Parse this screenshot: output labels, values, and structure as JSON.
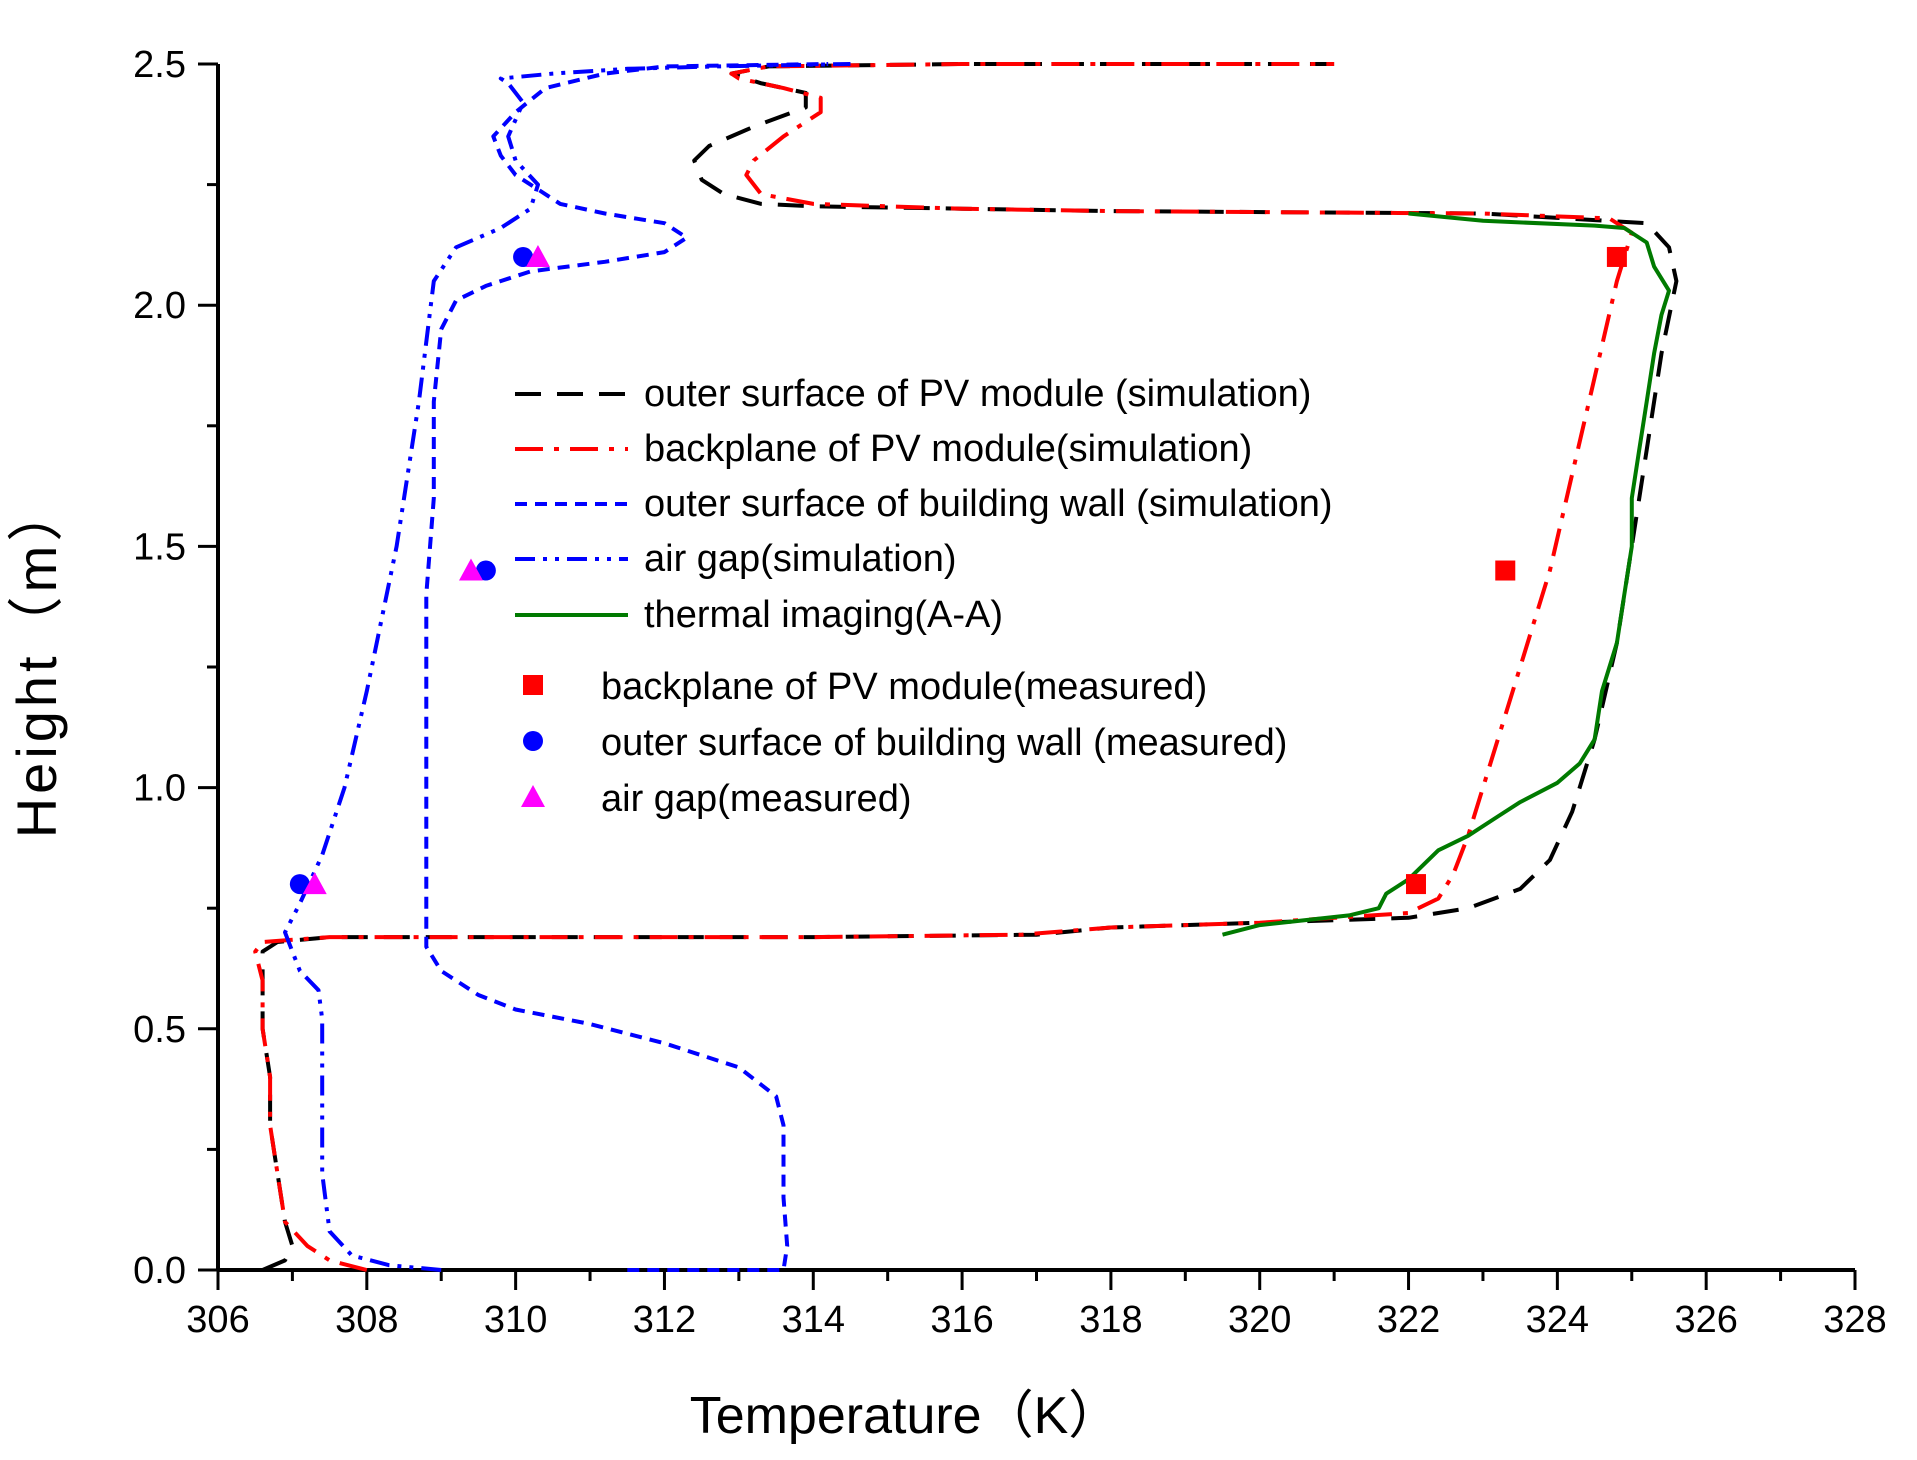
{
  "chart_data": {
    "type": "line",
    "title": "",
    "xlabel": "Temperature（K）",
    "ylabel": "Height（m）",
    "xlim": [
      306,
      328
    ],
    "ylim": [
      0,
      2.5
    ],
    "x_ticks": [
      306,
      308,
      310,
      312,
      314,
      316,
      318,
      320,
      322,
      324,
      326,
      328
    ],
    "x_tick_labels": [
      "306",
      "308",
      "310",
      "312",
      "314",
      "316",
      "318",
      "320",
      "322",
      "324",
      "326",
      "328"
    ],
    "y_ticks": [
      0.0,
      0.5,
      1.0,
      1.5,
      2.0,
      2.5
    ],
    "y_tick_labels": [
      "0.0",
      "0.5",
      "1.0",
      "1.5",
      "2.0",
      "2.5"
    ],
    "grid": false,
    "legend_position": "center",
    "series": [
      {
        "name": "outer surface of PV module (simulation)",
        "style": "dash",
        "color": "#000000",
        "points": [
          [
            306.6,
            0.0
          ],
          [
            306.9,
            0.02
          ],
          [
            307.0,
            0.05
          ],
          [
            306.9,
            0.1
          ],
          [
            306.8,
            0.2
          ],
          [
            306.7,
            0.3
          ],
          [
            306.7,
            0.4
          ],
          [
            306.6,
            0.5
          ],
          [
            306.6,
            0.6
          ],
          [
            306.6,
            0.66
          ],
          [
            306.8,
            0.68
          ],
          [
            307.5,
            0.69
          ],
          [
            310,
            0.69
          ],
          [
            314,
            0.69
          ],
          [
            317,
            0.695
          ],
          [
            318,
            0.71
          ],
          [
            320,
            0.72
          ],
          [
            322,
            0.73
          ],
          [
            322.8,
            0.75
          ],
          [
            323.5,
            0.79
          ],
          [
            323.9,
            0.85
          ],
          [
            324.2,
            0.95
          ],
          [
            324.5,
            1.1
          ],
          [
            324.8,
            1.3
          ],
          [
            325.0,
            1.5
          ],
          [
            325.2,
            1.7
          ],
          [
            325.4,
            1.9
          ],
          [
            325.6,
            2.05
          ],
          [
            325.5,
            2.12
          ],
          [
            325.2,
            2.17
          ],
          [
            323,
            2.19
          ],
          [
            318,
            2.195
          ],
          [
            316,
            2.2
          ],
          [
            314,
            2.205
          ],
          [
            313.3,
            2.21
          ],
          [
            312.8,
            2.23
          ],
          [
            312.5,
            2.26
          ],
          [
            312.4,
            2.3
          ],
          [
            312.6,
            2.33
          ],
          [
            313.2,
            2.37
          ],
          [
            313.9,
            2.41
          ],
          [
            313.9,
            2.44
          ],
          [
            313.3,
            2.46
          ],
          [
            312.9,
            2.48
          ],
          [
            313.4,
            2.495
          ],
          [
            316,
            2.5
          ],
          [
            321,
            2.5
          ]
        ]
      },
      {
        "name": "backplane of PV module(simulation)",
        "style": "dashdot",
        "color": "#ff0000",
        "points": [
          [
            308.0,
            0.0
          ],
          [
            307.5,
            0.02
          ],
          [
            307.2,
            0.05
          ],
          [
            306.9,
            0.1
          ],
          [
            306.8,
            0.2
          ],
          [
            306.7,
            0.3
          ],
          [
            306.7,
            0.4
          ],
          [
            306.6,
            0.5
          ],
          [
            306.6,
            0.6
          ],
          [
            306.5,
            0.66
          ],
          [
            306.6,
            0.68
          ],
          [
            307.5,
            0.69
          ],
          [
            310,
            0.69
          ],
          [
            314,
            0.69
          ],
          [
            316.8,
            0.695
          ],
          [
            318,
            0.71
          ],
          [
            320,
            0.72
          ],
          [
            322,
            0.74
          ],
          [
            322.4,
            0.77
          ],
          [
            322.6,
            0.82
          ],
          [
            322.8,
            0.9
          ],
          [
            323.1,
            1.05
          ],
          [
            323.5,
            1.25
          ],
          [
            323.9,
            1.45
          ],
          [
            324.2,
            1.65
          ],
          [
            324.5,
            1.85
          ],
          [
            324.8,
            2.05
          ],
          [
            325.0,
            2.15
          ],
          [
            324.7,
            2.18
          ],
          [
            323,
            2.19
          ],
          [
            318,
            2.195
          ],
          [
            316,
            2.2
          ],
          [
            314,
            2.21
          ],
          [
            313.3,
            2.23
          ],
          [
            313.1,
            2.27
          ],
          [
            313.2,
            2.3
          ],
          [
            313.6,
            2.35
          ],
          [
            314.1,
            2.4
          ],
          [
            314.1,
            2.43
          ],
          [
            313.6,
            2.45
          ],
          [
            313.0,
            2.47
          ],
          [
            312.9,
            2.48
          ],
          [
            313.4,
            2.495
          ],
          [
            316,
            2.5
          ],
          [
            321,
            2.5
          ]
        ]
      },
      {
        "name": "outer surface of building wall (simulation)",
        "style": "shortdash",
        "color": "#0000ff",
        "points": [
          [
            311.5,
            0.0
          ],
          [
            313.0,
            0.0
          ],
          [
            313.6,
            0.0
          ],
          [
            313.65,
            0.05
          ],
          [
            313.6,
            0.15
          ],
          [
            313.6,
            0.3
          ],
          [
            313.5,
            0.36
          ],
          [
            313.0,
            0.42
          ],
          [
            312.0,
            0.47
          ],
          [
            311.0,
            0.51
          ],
          [
            310.0,
            0.54
          ],
          [
            309.5,
            0.57
          ],
          [
            309.0,
            0.62
          ],
          [
            308.8,
            0.67
          ],
          [
            308.8,
            0.75
          ],
          [
            308.8,
            0.85
          ],
          [
            308.8,
            1.0
          ],
          [
            308.8,
            1.2
          ],
          [
            308.8,
            1.4
          ],
          [
            308.9,
            1.6
          ],
          [
            308.9,
            1.8
          ],
          [
            309.0,
            1.95
          ],
          [
            309.2,
            2.01
          ],
          [
            309.6,
            2.04
          ],
          [
            310.2,
            2.07
          ],
          [
            311.2,
            2.09
          ],
          [
            312.0,
            2.11
          ],
          [
            312.3,
            2.14
          ],
          [
            312.0,
            2.17
          ],
          [
            311.2,
            2.19
          ],
          [
            310.6,
            2.21
          ],
          [
            310.3,
            2.24
          ],
          [
            310.0,
            2.27
          ],
          [
            309.8,
            2.31
          ],
          [
            309.7,
            2.35
          ],
          [
            310.0,
            2.4
          ],
          [
            310.4,
            2.45
          ],
          [
            311.2,
            2.48
          ],
          [
            312.0,
            2.495
          ],
          [
            314.2,
            2.5
          ]
        ]
      },
      {
        "name": "air gap(simulation)",
        "style": "dashdotdot",
        "color": "#0000ff",
        "points": [
          [
            309.0,
            0.0
          ],
          [
            308.3,
            0.01
          ],
          [
            307.8,
            0.03
          ],
          [
            307.5,
            0.08
          ],
          [
            307.4,
            0.2
          ],
          [
            307.4,
            0.35
          ],
          [
            307.4,
            0.52
          ],
          [
            307.35,
            0.58
          ],
          [
            307.1,
            0.62
          ],
          [
            307.0,
            0.66
          ],
          [
            306.9,
            0.7
          ],
          [
            307.1,
            0.76
          ],
          [
            307.4,
            0.86
          ],
          [
            307.7,
            1.0
          ],
          [
            308.0,
            1.2
          ],
          [
            308.4,
            1.5
          ],
          [
            308.7,
            1.8
          ],
          [
            308.9,
            2.05
          ],
          [
            309.2,
            2.12
          ],
          [
            309.8,
            2.16
          ],
          [
            310.2,
            2.2
          ],
          [
            310.3,
            2.25
          ],
          [
            310.0,
            2.3
          ],
          [
            309.9,
            2.35
          ],
          [
            310.1,
            2.42
          ],
          [
            309.9,
            2.46
          ],
          [
            309.8,
            2.47
          ],
          [
            310.5,
            2.48
          ],
          [
            311.5,
            2.49
          ],
          [
            312.7,
            2.495
          ],
          [
            314.5,
            2.5
          ]
        ]
      },
      {
        "name": "thermal imaging(A-A)",
        "style": "solid",
        "color": "#007a00",
        "points": [
          [
            319.5,
            0.695
          ],
          [
            320.0,
            0.715
          ],
          [
            320.6,
            0.725
          ],
          [
            321.2,
            0.735
          ],
          [
            321.6,
            0.75
          ],
          [
            321.7,
            0.78
          ],
          [
            322.0,
            0.81
          ],
          [
            322.2,
            0.84
          ],
          [
            322.4,
            0.87
          ],
          [
            322.8,
            0.9
          ],
          [
            323.2,
            0.94
          ],
          [
            323.5,
            0.97
          ],
          [
            324.0,
            1.01
          ],
          [
            324.3,
            1.05
          ],
          [
            324.5,
            1.1
          ],
          [
            324.6,
            1.2
          ],
          [
            324.8,
            1.3
          ],
          [
            324.9,
            1.4
          ],
          [
            325.0,
            1.5
          ],
          [
            325.0,
            1.6
          ],
          [
            325.1,
            1.7
          ],
          [
            325.2,
            1.8
          ],
          [
            325.3,
            1.9
          ],
          [
            325.4,
            1.98
          ],
          [
            325.5,
            2.03
          ],
          [
            325.3,
            2.08
          ],
          [
            325.2,
            2.13
          ],
          [
            324.9,
            2.16
          ],
          [
            324.5,
            2.165
          ],
          [
            323.0,
            2.175
          ],
          [
            322.0,
            2.19
          ]
        ]
      },
      {
        "name": "backplane of PV module(measured)",
        "marker": "square",
        "color": "#ff0000",
        "points": [
          [
            322.1,
            0.8
          ],
          [
            323.3,
            1.45
          ],
          [
            324.8,
            2.1
          ]
        ]
      },
      {
        "name": "outer surface of building wall (measured)",
        "marker": "circle",
        "color": "#0000ff",
        "points": [
          [
            307.1,
            0.8
          ],
          [
            309.6,
            1.45
          ],
          [
            310.1,
            2.1
          ]
        ]
      },
      {
        "name": "air gap(measured)",
        "marker": "triangle",
        "color": "#ff00ff",
        "points": [
          [
            307.3,
            0.8
          ],
          [
            309.4,
            1.45
          ],
          [
            310.3,
            2.1
          ]
        ]
      }
    ]
  }
}
